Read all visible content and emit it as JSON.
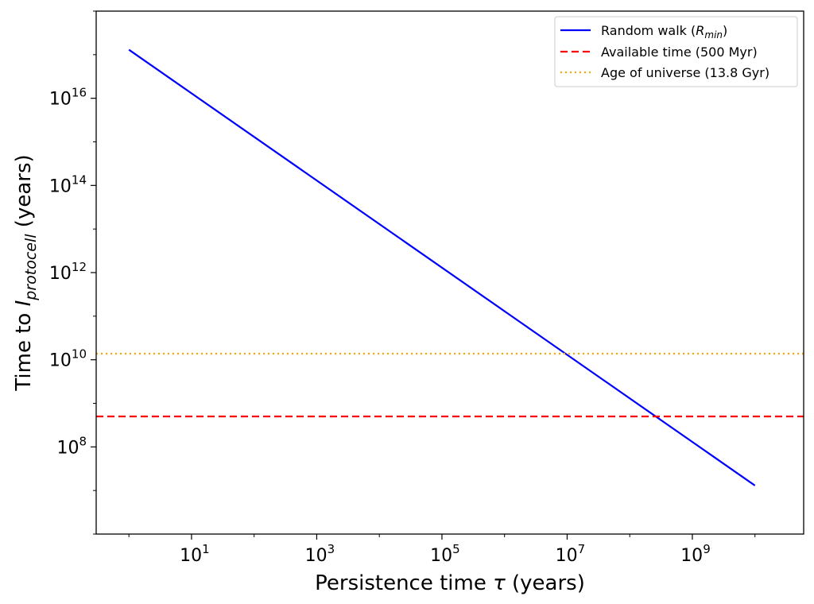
{
  "chart_data": {
    "type": "line",
    "xlabel": "Persistence time τ (years)",
    "ylabel": "Time to I_protocell (years)",
    "xscale": "log",
    "yscale": "log",
    "xlim": [
      0.3,
      60000000000
    ],
    "ylim": [
      1000000.0,
      1e+18
    ],
    "x_ticks": [
      {
        "base": "10",
        "exp": "1",
        "value": 10
      },
      {
        "base": "10",
        "exp": "3",
        "value": 1000
      },
      {
        "base": "10",
        "exp": "5",
        "value": 100000
      },
      {
        "base": "10",
        "exp": "7",
        "value": 10000000
      },
      {
        "base": "10",
        "exp": "9",
        "value": 1000000000
      }
    ],
    "y_ticks": [
      {
        "base": "10",
        "exp": "8",
        "value": 100000000
      },
      {
        "base": "10",
        "exp": "10",
        "value": 10000000000
      },
      {
        "base": "10",
        "exp": "12",
        "value": 1000000000000
      },
      {
        "base": "10",
        "exp": "14",
        "value": 100000000000000
      },
      {
        "base": "10",
        "exp": "16",
        "value": 10000000000000000
      }
    ],
    "grid": false,
    "legend_position": "top-right",
    "series": [
      {
        "name": "Random walk (R_min)",
        "kind": "line",
        "color": "#0000ff",
        "style": "solid",
        "x": [
          1,
          10000000000
        ],
        "y": [
          130000000000000000,
          13000000
        ]
      },
      {
        "name": "Available time (500 Myr)",
        "kind": "hline",
        "color": "#ff0000",
        "style": "dashed",
        "y": 500000000
      },
      {
        "name": "Age of universe (13.8 Gyr)",
        "kind": "hline",
        "color": "#ffa500",
        "style": "dotted",
        "y": 13800000000
      }
    ],
    "legend": [
      {
        "prefix": "Random walk (",
        "italic": "R",
        "sub": "min",
        "suffix": ")"
      },
      {
        "text": "Available time (500 Myr)"
      },
      {
        "text": "Age of universe (13.8 Gyr)"
      }
    ],
    "xlabel_parts": {
      "prefix": "Persistence time ",
      "italic": "τ",
      "suffix": " (years)"
    },
    "ylabel_parts": {
      "prefix": "Time to ",
      "italic": "I",
      "sub": "protocell",
      "suffix": " (years)"
    }
  }
}
